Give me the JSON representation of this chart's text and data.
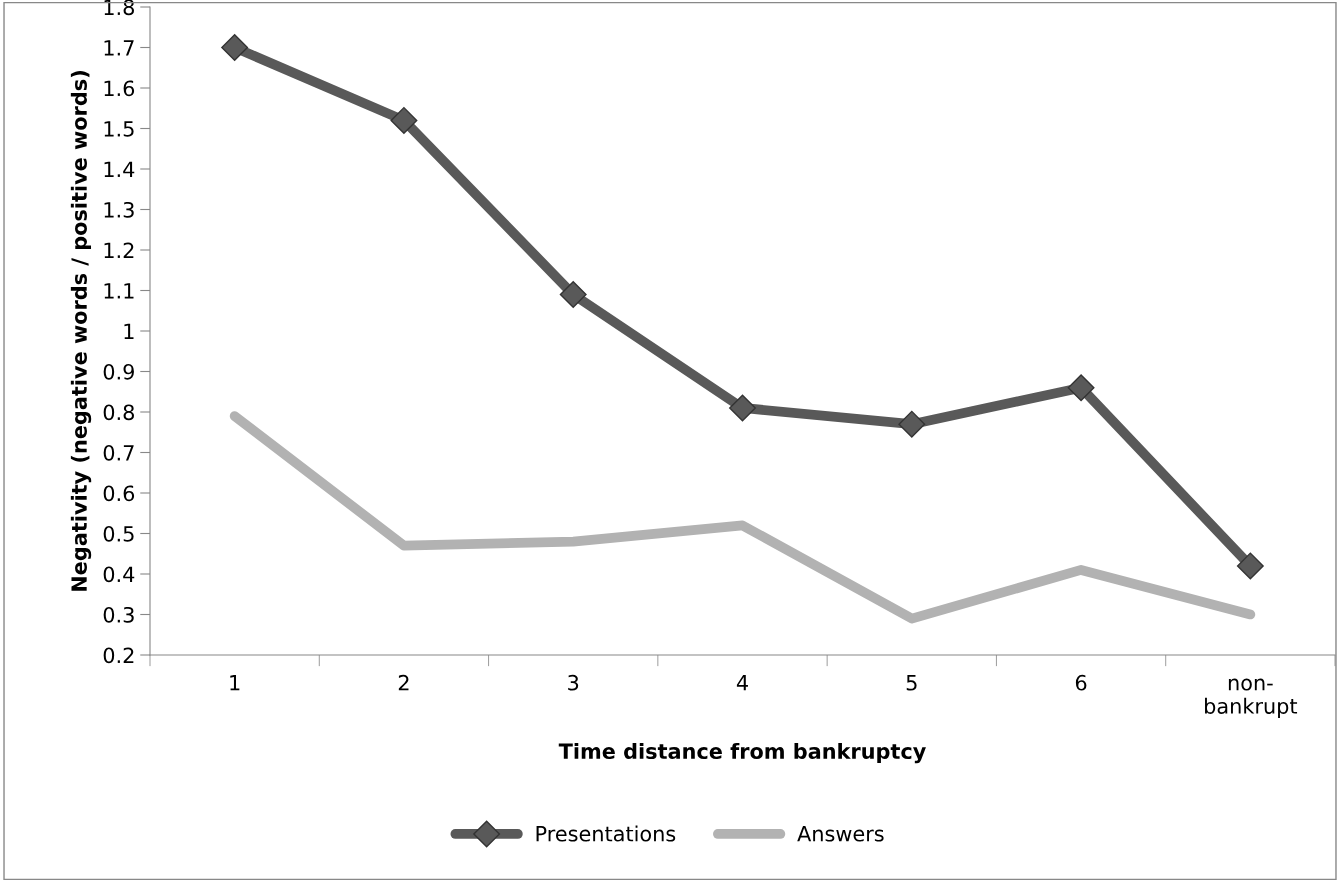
{
  "chart_data": {
    "type": "line",
    "xlabel": "Time distance from bankruptcy",
    "ylabel": "Negativity (negative words / positive words)",
    "categories": [
      "1",
      "2",
      "3",
      "4",
      "5",
      "6",
      "non-\nbankrupt"
    ],
    "series": [
      {
        "name": "Presentations",
        "color": "#595959",
        "marker": "diamond",
        "values": [
          1.7,
          1.52,
          1.09,
          0.81,
          0.77,
          0.86,
          0.42
        ]
      },
      {
        "name": "Answers",
        "color": "#b2b2b2",
        "marker": "none",
        "values": [
          0.79,
          0.47,
          0.48,
          0.52,
          0.29,
          0.41,
          0.3
        ]
      }
    ],
    "ylim": [
      0.2,
      1.8
    ],
    "yticks": [
      0.2,
      0.3,
      0.4,
      0.5,
      0.6,
      0.7,
      0.8,
      0.9,
      1,
      1.1,
      1.2,
      1.3,
      1.4,
      1.5,
      1.6,
      1.7,
      1.8
    ],
    "grid": false,
    "legend": "bottom",
    "line_style": "solid"
  }
}
